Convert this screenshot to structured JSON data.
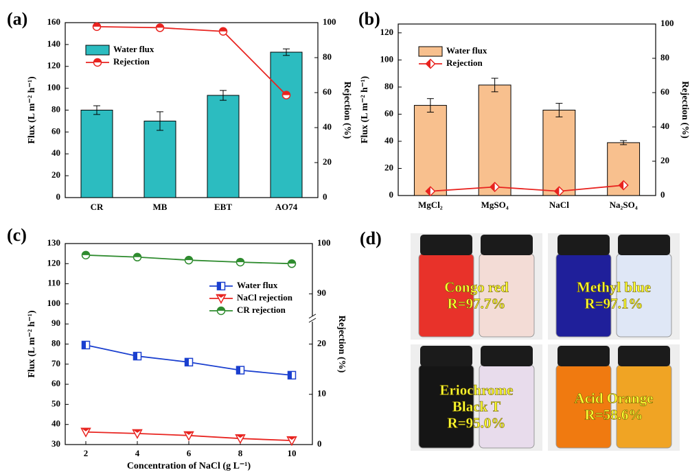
{
  "chart_data": [
    {
      "type": "bar_line",
      "panel_label": "(a)",
      "ylabel": "Flux (L m⁻² h⁻¹)",
      "y2label": "Rejection (%)",
      "categories": [
        "CR",
        "MB",
        "EBT",
        "AO74"
      ],
      "series": [
        {
          "name": "Water flux",
          "type": "bar",
          "color": "#2cbcc0",
          "values": [
            80,
            70,
            93.5,
            133
          ],
          "errors": [
            4,
            8.5,
            4.5,
            3
          ]
        },
        {
          "name": "Rejection",
          "type": "line",
          "axis": "y2",
          "color": "#e8231f",
          "marker": "circle",
          "values": [
            97.7,
            97.1,
            95.0,
            58.6
          ]
        }
      ],
      "ylim": [
        0,
        160
      ],
      "yticks": [
        0,
        20,
        40,
        60,
        80,
        100,
        120,
        140,
        160
      ],
      "y2lim": [
        0,
        100
      ],
      "y2ticks": [
        0,
        20,
        40,
        60,
        80,
        100
      ],
      "legend": "upper left"
    },
    {
      "type": "bar_line",
      "panel_label": "(b)",
      "ylabel": "Flux (L m⁻² h⁻¹)",
      "y2label": "Rejection (%)",
      "categories": [
        "MgCl₂",
        "MgSO₄",
        "NaCl",
        "Na₂SO₄"
      ],
      "series": [
        {
          "name": "Water flux",
          "type": "bar",
          "color": "#f8c08e",
          "values": [
            66.5,
            81.5,
            63,
            39
          ],
          "errors": [
            5,
            5,
            5,
            1.5
          ]
        },
        {
          "name": "Rejection",
          "type": "line",
          "axis": "y2",
          "color": "#e8231f",
          "marker": "diamond",
          "values": [
            2.5,
            5,
            2.5,
            6
          ]
        }
      ],
      "ylim": [
        0,
        126.5
      ],
      "yticks": [
        0,
        20,
        40,
        60,
        80,
        100,
        120
      ],
      "y2lim": [
        0,
        100
      ],
      "y2ticks": [
        0,
        20,
        40,
        60,
        80,
        100
      ],
      "legend": "upper left"
    },
    {
      "type": "line",
      "panel_label": "(c)",
      "ylabel": "Flux (L m⁻² h⁻¹)",
      "y2label": "Rejection (%)",
      "xlabel": "Concentration of NaCl (g L⁻¹)",
      "x": [
        2,
        4,
        6,
        8,
        10
      ],
      "xlim": [
        1.2,
        10.8
      ],
      "xticks": [
        2,
        4,
        6,
        8,
        10
      ],
      "series": [
        {
          "name": "Water flux",
          "color": "#1a3fcf",
          "marker": "square",
          "values": [
            79.5,
            74,
            71,
            67,
            64.5
          ]
        },
        {
          "name": "NaCl rejection",
          "axis": "y2",
          "color": "#e8231f",
          "marker": "triangle-down",
          "values": [
            2.5,
            2.2,
            1.8,
            1.2,
            0.8
          ]
        },
        {
          "name": "CR rejection",
          "axis": "y2",
          "color": "#2e8b2e",
          "marker": "circle",
          "values": [
            97.7,
            97.3,
            96.7,
            96.3,
            96.0
          ]
        }
      ],
      "ylim": [
        30,
        130
      ],
      "yticks": [
        30,
        40,
        50,
        60,
        70,
        80,
        90,
        100,
        110,
        120,
        130
      ],
      "y2lim": [
        0,
        100
      ],
      "y2ticks": [
        0,
        10,
        20,
        90,
        100
      ],
      "y2_break": [
        25,
        85
      ],
      "legend": "upper right"
    }
  ],
  "panel_d": {
    "label": "(d)",
    "photos": [
      {
        "lines": [
          "Congo red",
          "R=97.7%"
        ]
      },
      {
        "lines": [
          "Methyl blue",
          "R=97.1%"
        ]
      },
      {
        "lines": [
          "Eriochrome",
          "Black T",
          "R=95.0%"
        ]
      },
      {
        "lines": [
          "Acid Orange",
          "R=58.6%"
        ]
      }
    ]
  }
}
